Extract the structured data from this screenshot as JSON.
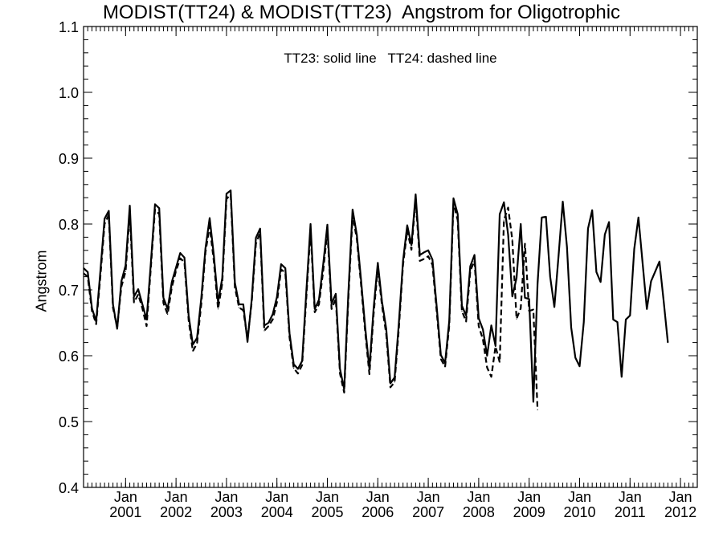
{
  "chart_data": {
    "type": "line",
    "title": "MODIST(TT24) & MODIST(TT23)  Angstrom for Oligotrophic",
    "ylabel": "Angstrom",
    "xlabel": "",
    "annotation": "TT23: solid line   TT24: dashed line",
    "ylim": [
      0.4,
      1.1
    ],
    "xlim": [
      "2000-03",
      "2012-05"
    ],
    "y_ticks": [
      "0.4",
      "0.5",
      "0.6",
      "0.7",
      "0.8",
      "0.9",
      "1.0",
      "1.1"
    ],
    "x_ticks": [
      {
        "month": "Jan",
        "year": "2001",
        "date": "2001-01"
      },
      {
        "month": "Jan",
        "year": "2002",
        "date": "2002-01"
      },
      {
        "month": "Jan",
        "year": "2003",
        "date": "2003-01"
      },
      {
        "month": "Jan",
        "year": "2004",
        "date": "2004-01"
      },
      {
        "month": "Jan",
        "year": "2005",
        "date": "2005-01"
      },
      {
        "month": "Jan",
        "year": "2006",
        "date": "2006-01"
      },
      {
        "month": "Jan",
        "year": "2007",
        "date": "2007-01"
      },
      {
        "month": "Jan",
        "year": "2008",
        "date": "2008-01"
      },
      {
        "month": "Jan",
        "year": "2009",
        "date": "2009-01"
      },
      {
        "month": "Jan",
        "year": "2010",
        "date": "2010-01"
      },
      {
        "month": "Jan",
        "year": "2011",
        "date": "2011-01"
      },
      {
        "month": "Jan",
        "year": "2012",
        "date": "2012-01"
      }
    ],
    "grid": false,
    "series": [
      {
        "name": "TT23",
        "style": "solid",
        "start": "2000-03",
        "values": [
          0.733,
          0.727,
          0.672,
          0.652,
          0.728,
          0.808,
          0.82,
          0.678,
          0.641,
          0.713,
          0.737,
          0.828,
          0.69,
          0.701,
          0.678,
          0.655,
          0.74,
          0.83,
          0.824,
          0.688,
          0.671,
          0.712,
          0.734,
          0.756,
          0.749,
          0.661,
          0.617,
          0.627,
          0.687,
          0.763,
          0.809,
          0.752,
          0.681,
          0.718,
          0.846,
          0.851,
          0.711,
          0.678,
          0.678,
          0.621,
          0.685,
          0.779,
          0.793,
          0.646,
          0.65,
          0.663,
          0.689,
          0.739,
          0.733,
          0.634,
          0.587,
          0.58,
          0.592,
          0.698,
          0.8,
          0.671,
          0.685,
          0.738,
          0.799,
          0.679,
          0.694,
          0.58,
          0.549,
          0.696,
          0.822,
          0.784,
          0.716,
          0.643,
          0.58,
          0.672,
          0.741,
          0.682,
          0.641,
          0.558,
          0.567,
          0.649,
          0.744,
          0.798,
          0.768,
          0.845,
          0.753,
          0.757,
          0.76,
          0.746,
          0.675,
          0.601,
          0.589,
          0.653,
          0.839,
          0.815,
          0.676,
          0.661,
          0.736,
          0.753,
          0.657,
          0.64,
          0.6,
          0.646,
          0.615,
          0.815,
          0.833,
          0.784,
          0.69,
          0.718,
          0.8,
          0.688,
          0.686,
          0.53,
          0.709,
          0.81,
          0.811,
          0.72,
          0.674,
          0.752,
          0.834,
          0.765,
          0.643,
          0.597,
          0.584,
          0.651,
          0.793,
          0.821,
          0.727,
          0.712,
          0.784,
          0.803,
          0.655,
          0.651,
          0.568,
          0.655,
          0.661,
          0.762,
          0.81,
          0.74,
          0.671,
          0.713,
          0.728,
          0.743,
          0.683,
          0.62
        ]
      },
      {
        "name": "TT24",
        "style": "dashed",
        "start": "2000-03",
        "values": [
          0.725,
          0.72,
          0.668,
          0.648,
          0.72,
          0.8,
          0.814,
          0.673,
          0.643,
          0.705,
          0.728,
          0.817,
          0.681,
          0.693,
          0.672,
          0.645,
          0.733,
          0.822,
          0.815,
          0.68,
          0.663,
          0.704,
          0.729,
          0.748,
          0.742,
          0.654,
          0.607,
          0.619,
          0.678,
          0.757,
          0.797,
          0.743,
          0.671,
          0.71,
          0.838,
          0.845,
          0.704,
          0.673,
          0.669,
          0.626,
          0.681,
          0.77,
          0.787,
          0.638,
          0.645,
          0.655,
          0.681,
          0.731,
          0.726,
          0.628,
          0.581,
          0.573,
          0.586,
          0.689,
          0.791,
          0.666,
          0.678,
          0.728,
          0.79,
          0.671,
          0.686,
          0.573,
          0.544,
          0.687,
          0.813,
          0.778,
          0.709,
          0.636,
          0.572,
          0.663,
          0.733,
          0.676,
          0.633,
          0.552,
          0.56,
          0.641,
          0.738,
          0.79,
          0.761,
          0.838,
          0.744,
          0.747,
          0.751,
          0.738,
          0.668,
          0.595,
          0.583,
          0.646,
          0.831,
          0.806,
          0.668,
          0.652,
          0.729,
          0.744,
          0.645,
          0.625,
          0.582,
          0.568,
          0.614,
          0.59,
          0.806,
          0.825,
          0.776,
          0.656,
          0.672,
          0.77,
          0.668,
          0.67,
          0.518
        ]
      }
    ]
  }
}
